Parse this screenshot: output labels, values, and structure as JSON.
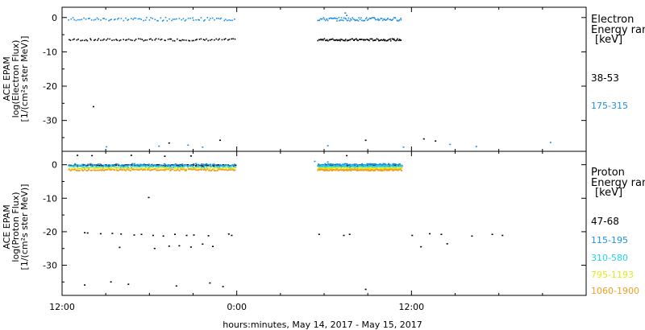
{
  "colors": {
    "black": "#000000",
    "blue": "#1f8fe0",
    "cyan": "#22d3e6",
    "yellow": "#e2ea18",
    "orange": "#f0a020"
  },
  "xlabel": "hours:minutes, May 14, 2017 - May 15, 2017",
  "x_ticks": [
    "12:00",
    "0:00",
    "12:00"
  ],
  "chart_data": [
    {
      "type": "scatter",
      "ylabel_lines": [
        "ACE EPAM",
        "log(Electron Flux)",
        "[1/(cm²s ster MeV)]"
      ],
      "legend_title": [
        "Electron",
        "Energy ran",
        "[keV]"
      ],
      "y_ticks": [
        "0",
        "-10",
        "-20",
        "-30"
      ],
      "ylim": [
        -39,
        3
      ],
      "xlim_hours": [
        0,
        36
      ],
      "gap_hours": [
        12,
        17.5
      ],
      "series": [
        {
          "name": "38-53",
          "color": "#000000",
          "band": [
            -6.6,
            -6.0
          ],
          "outliers": [
            [
              2.1,
              -25.8
            ],
            [
              7.3,
              -36.4
            ],
            [
              10.8,
              -35.6
            ],
            [
              20.8,
              -35.6
            ],
            [
              24.8,
              -35.2
            ],
            [
              25.6,
              -35.8
            ]
          ]
        },
        {
          "name": "175-315",
          "color": "#1f8fe0",
          "band": [
            -0.8,
            0.2
          ],
          "outliers": [
            [
              19.4,
              1.5
            ],
            [
              19.5,
              0.8
            ],
            [
              3.0,
              -37.5
            ],
            [
              6.6,
              -37.3
            ],
            [
              8.6,
              -37.0
            ],
            [
              9.6,
              -37.6
            ],
            [
              18.2,
              -37.2
            ],
            [
              23.4,
              -37.6
            ],
            [
              26.6,
              -36.8
            ],
            [
              28.4,
              -37.4
            ],
            [
              33.5,
              -36.2
            ]
          ]
        }
      ]
    },
    {
      "type": "scatter",
      "ylabel_lines": [
        "ACE EPAM",
        "log(Proton Flux)",
        "[1/(cm²s ster MeV)]"
      ],
      "legend_title": [
        "Proton",
        "Energy ran",
        "[keV]"
      ],
      "y_ticks": [
        "0",
        "-10",
        "-20",
        "-30"
      ],
      "ylim": [
        -39,
        4
      ],
      "xlim_hours": [
        0,
        36
      ],
      "gap_hours": [
        12,
        17.5
      ],
      "series": [
        {
          "name": "47-68",
          "color": "#000000",
          "band": [
            -0.2,
            0.2
          ],
          "outliers": [
            [
              1.0,
              3.0
            ],
            [
              2.0,
              2.9
            ],
            [
              4.7,
              3.0
            ],
            [
              7.0,
              2.7
            ],
            [
              8.8,
              2.8
            ],
            [
              19.5,
              2.9
            ],
            [
              1.5,
              -20.1
            ],
            [
              1.7,
              -20.2
            ],
            [
              2.6,
              -20.4
            ],
            [
              3.4,
              -20.3
            ],
            [
              4.0,
              -20.5
            ],
            [
              4.9,
              -20.8
            ],
            [
              5.4,
              -20.6
            ],
            [
              6.2,
              -20.9
            ],
            [
              6.9,
              -21.1
            ],
            [
              7.7,
              -20.6
            ],
            [
              8.5,
              -20.9
            ],
            [
              9.0,
              -20.8
            ],
            [
              10.0,
              -21.0
            ],
            [
              11.4,
              -20.5
            ],
            [
              11.6,
              -20.9
            ],
            [
              17.6,
              -20.6
            ],
            [
              19.3,
              -20.9
            ],
            [
              19.7,
              -20.6
            ],
            [
              24.0,
              -20.9
            ],
            [
              25.2,
              -20.4
            ],
            [
              26.0,
              -20.6
            ],
            [
              28.1,
              -21.1
            ],
            [
              29.5,
              -20.6
            ],
            [
              30.2,
              -20.9
            ],
            [
              5.9,
              -9.6
            ],
            [
              3.9,
              -24.5
            ],
            [
              6.3,
              -24.8
            ],
            [
              7.3,
              -24.1
            ],
            [
              8.0,
              -24.0
            ],
            [
              8.8,
              -24.4
            ],
            [
              9.6,
              -23.5
            ],
            [
              10.3,
              -24.2
            ],
            [
              24.6,
              -24.3
            ],
            [
              26.4,
              -23.4
            ],
            [
              1.5,
              -35.7
            ],
            [
              3.3,
              -34.8
            ],
            [
              4.5,
              -35.5
            ],
            [
              7.8,
              -36.0
            ],
            [
              10.1,
              -35.1
            ],
            [
              11.0,
              -36.2
            ],
            [
              20.8,
              -37.0
            ]
          ]
        },
        {
          "name": "115-195",
          "color": "#1f8fe0",
          "band": [
            -0.2,
            0.5
          ],
          "outliers": [
            [
              17.3,
              1.2
            ],
            [
              18.2,
              1.0
            ]
          ]
        },
        {
          "name": "310-580",
          "color": "#22d3e6",
          "band": [
            -0.7,
            0.0
          ],
          "outliers": []
        },
        {
          "name": "795-1193",
          "color": "#e2ea18",
          "band": [
            -1.2,
            -0.6
          ],
          "outliers": []
        },
        {
          "name": "1060-1900",
          "color": "#f0a020",
          "band": [
            -1.6,
            -1.1
          ],
          "outliers": []
        }
      ]
    }
  ]
}
